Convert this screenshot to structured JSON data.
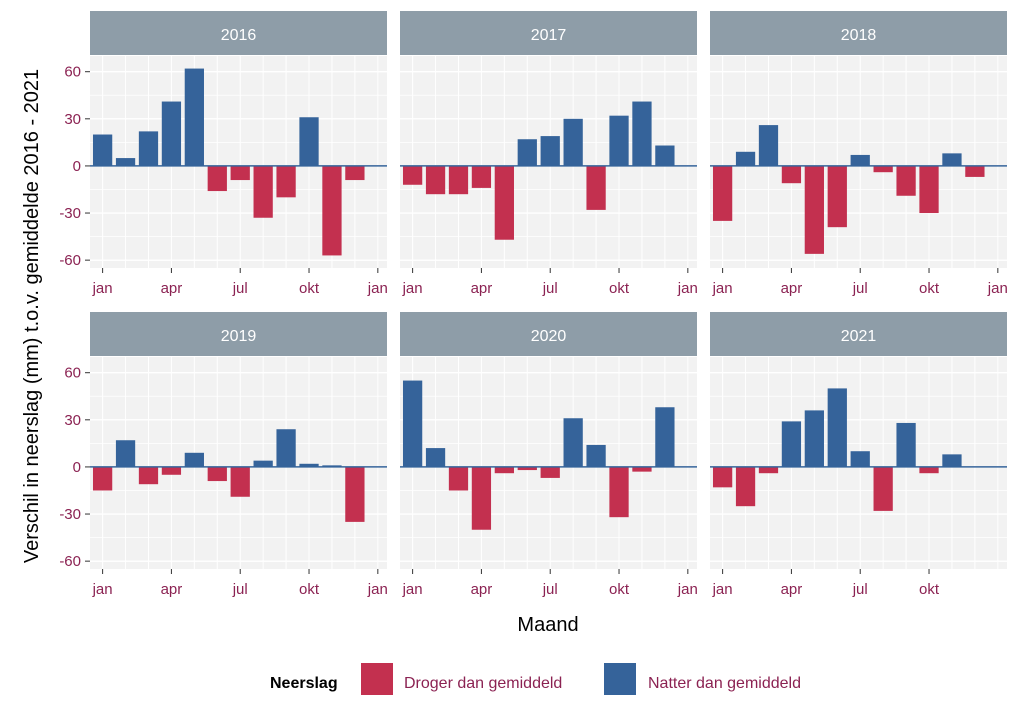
{
  "chart_data": {
    "type": "bar",
    "xlabel": "Maand",
    "ylabel": "Verschil in neerslag (mm) t.o.v. gemiddelde 2016 - 2021",
    "ylim": [
      -65,
      70
    ],
    "y_ticks": [
      60,
      30,
      0,
      -30,
      -60
    ],
    "x_tick_labels": [
      "jan",
      "apr",
      "jul",
      "okt",
      "jan"
    ],
    "x_tick_months": [
      1,
      4,
      7,
      10,
      13
    ],
    "colors": {
      "negative": "#C3304F",
      "positive": "#35639A",
      "strip": "#8E9DA8",
      "panel": "#F2F2F2",
      "zero_line": "#35639A"
    },
    "legend": {
      "title": "Neerslag",
      "position": "bottom",
      "entries": [
        {
          "label": "Droger dan gemiddeld",
          "color": "#C3304F"
        },
        {
          "label": "Natter dan gemiddeld",
          "color": "#35639A"
        }
      ]
    },
    "panels": [
      {
        "year": "2016",
        "months": [
          1,
          2,
          3,
          4,
          5,
          6,
          7,
          8,
          9,
          10,
          11,
          12
        ],
        "values": [
          20,
          5,
          22,
          41,
          62,
          -16,
          -9,
          -33,
          -20,
          31,
          -57,
          -9
        ]
      },
      {
        "year": "2017",
        "months": [
          1,
          2,
          3,
          4,
          5,
          6,
          7,
          8,
          9,
          10,
          11,
          12
        ],
        "values": [
          -12,
          -18,
          -18,
          -14,
          -47,
          17,
          19,
          30,
          -28,
          32,
          41,
          13
        ]
      },
      {
        "year": "2018",
        "months": [
          1,
          2,
          3,
          4,
          5,
          6,
          7,
          8,
          9,
          10,
          11,
          12
        ],
        "values": [
          -35,
          9,
          26,
          -11,
          -56,
          -39,
          7,
          -4,
          -19,
          -30,
          8,
          -7
        ]
      },
      {
        "year": "2019",
        "months": [
          1,
          2,
          3,
          4,
          5,
          6,
          7,
          8,
          9,
          10,
          11,
          12
        ],
        "values": [
          -15,
          17,
          -11,
          -5,
          9,
          -9,
          -19,
          4,
          24,
          2,
          1,
          -35
        ]
      },
      {
        "year": "2020",
        "months": [
          1,
          2,
          3,
          4,
          5,
          6,
          7,
          8,
          9,
          10,
          11,
          12
        ],
        "values": [
          55,
          12,
          -15,
          -40,
          -4,
          -2,
          -7,
          31,
          14,
          -32,
          -3,
          38
        ]
      },
      {
        "year": "2021",
        "months": [
          1,
          2,
          3,
          4,
          5,
          6,
          7,
          8,
          9,
          10,
          11
        ],
        "x_tick_labels": [
          "jan",
          "apr",
          "jul",
          "okt"
        ],
        "x_tick_months": [
          1,
          4,
          7,
          10
        ],
        "values": [
          -13,
          -25,
          -4,
          29,
          36,
          50,
          10,
          -28,
          28,
          -4,
          8
        ]
      }
    ]
  }
}
